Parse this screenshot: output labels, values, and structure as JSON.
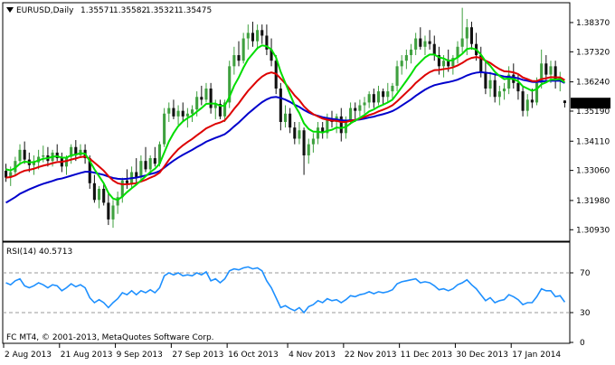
{
  "window": {
    "symbol": "EURUSD,Daily",
    "ohlc": [
      "1.35571",
      "1.35582",
      "1.35321",
      "1.35475"
    ]
  },
  "rsi": {
    "label": "RSI(14) 40.5713",
    "levels": [
      "70",
      "30",
      "0"
    ]
  },
  "copyright": "FC MT4, © 2001-2013, MetaQuotes Software Corp.",
  "price_axis": {
    "ticks": [
      "1.38370",
      "1.37320",
      "1.36240",
      "1.35190",
      "1.34110",
      "1.33060",
      "1.31980",
      "1.30930"
    ],
    "current_price": "1.35475"
  },
  "time_axis": {
    "ticks": [
      "2 Aug 2013",
      "21 Aug 2013",
      "9 Sep 2013",
      "27 Sep 2013",
      "16 Oct 2013",
      "4 Nov 2013",
      "22 Nov 2013",
      "11 Dec 2013",
      "30 Dec 2013",
      "17 Jan 2014"
    ]
  },
  "colors": {
    "bull": "#3fa03f",
    "bear": "#111111",
    "ma_fast": "#00dd00",
    "ma_mid": "#dd0000",
    "ma_slow": "#0000cc",
    "rsi": "#1e90ff",
    "current_tag_bg": "#000000",
    "current_tag_text": "#ffffff"
  },
  "chart_data": {
    "type": "candlestick",
    "title": "EURUSD,Daily",
    "ylim": [
      1.3055,
      1.3905
    ],
    "rsi_ylim": [
      0,
      100
    ],
    "rsi_levels": [
      70,
      30
    ],
    "candles": [
      [
        1.3305,
        1.333,
        1.3265,
        1.328
      ],
      [
        1.328,
        1.332,
        1.325,
        1.33
      ],
      [
        1.33,
        1.3355,
        1.329,
        1.334
      ],
      [
        1.334,
        1.34,
        1.3325,
        1.338
      ],
      [
        1.338,
        1.341,
        1.333,
        1.3345
      ],
      [
        1.3345,
        1.337,
        1.33,
        1.3325
      ],
      [
        1.3325,
        1.336,
        1.329,
        1.3335
      ],
      [
        1.3335,
        1.338,
        1.331,
        1.3355
      ],
      [
        1.3355,
        1.3395,
        1.3335,
        1.336
      ],
      [
        1.336,
        1.339,
        1.332,
        1.334
      ],
      [
        1.334,
        1.338,
        1.332,
        1.337
      ],
      [
        1.337,
        1.34,
        1.334,
        1.335
      ],
      [
        1.335,
        1.337,
        1.33,
        1.332
      ],
      [
        1.332,
        1.336,
        1.329,
        1.3355
      ],
      [
        1.3355,
        1.34,
        1.333,
        1.339
      ],
      [
        1.339,
        1.3415,
        1.334,
        1.336
      ],
      [
        1.336,
        1.34,
        1.335,
        1.338
      ],
      [
        1.338,
        1.34,
        1.333,
        1.335
      ],
      [
        1.335,
        1.336,
        1.324,
        1.326
      ],
      [
        1.326,
        1.329,
        1.319,
        1.32
      ],
      [
        1.32,
        1.325,
        1.317,
        1.324
      ],
      [
        1.324,
        1.326,
        1.318,
        1.319
      ],
      [
        1.319,
        1.323,
        1.311,
        1.313
      ],
      [
        1.313,
        1.32,
        1.31,
        1.318
      ],
      [
        1.318,
        1.323,
        1.315,
        1.321
      ],
      [
        1.321,
        1.328,
        1.319,
        1.327
      ],
      [
        1.327,
        1.331,
        1.324,
        1.326
      ],
      [
        1.326,
        1.332,
        1.324,
        1.33
      ],
      [
        1.33,
        1.335,
        1.326,
        1.328
      ],
      [
        1.328,
        1.336,
        1.327,
        1.334
      ],
      [
        1.334,
        1.339,
        1.33,
        1.331
      ],
      [
        1.331,
        1.336,
        1.329,
        1.335
      ],
      [
        1.335,
        1.339,
        1.332,
        1.333
      ],
      [
        1.333,
        1.341,
        1.332,
        1.34
      ],
      [
        1.34,
        1.353,
        1.339,
        1.351
      ],
      [
        1.351,
        1.355,
        1.348,
        1.353
      ],
      [
        1.353,
        1.356,
        1.349,
        1.35
      ],
      [
        1.35,
        1.354,
        1.347,
        1.352
      ],
      [
        1.352,
        1.355,
        1.348,
        1.35
      ],
      [
        1.35,
        1.353,
        1.346,
        1.351
      ],
      [
        1.351,
        1.354,
        1.348,
        1.3525
      ],
      [
        1.3525,
        1.359,
        1.35,
        1.357
      ],
      [
        1.357,
        1.361,
        1.354,
        1.356
      ],
      [
        1.356,
        1.362,
        1.355,
        1.36
      ],
      [
        1.36,
        1.362,
        1.351,
        1.353
      ],
      [
        1.353,
        1.356,
        1.349,
        1.3545
      ],
      [
        1.3545,
        1.356,
        1.349,
        1.35
      ],
      [
        1.35,
        1.356,
        1.348,
        1.355
      ],
      [
        1.355,
        1.37,
        1.353,
        1.368
      ],
      [
        1.368,
        1.375,
        1.365,
        1.372
      ],
      [
        1.372,
        1.377,
        1.368,
        1.37
      ],
      [
        1.37,
        1.38,
        1.369,
        1.378
      ],
      [
        1.378,
        1.383,
        1.374,
        1.38
      ],
      [
        1.38,
        1.384,
        1.375,
        1.377
      ],
      [
        1.377,
        1.383,
        1.374,
        1.381
      ],
      [
        1.381,
        1.383,
        1.376,
        1.379
      ],
      [
        1.379,
        1.383,
        1.372,
        1.374
      ],
      [
        1.374,
        1.378,
        1.368,
        1.37
      ],
      [
        1.37,
        1.372,
        1.358,
        1.36
      ],
      [
        1.36,
        1.362,
        1.345,
        1.348
      ],
      [
        1.348,
        1.354,
        1.346,
        1.351
      ],
      [
        1.351,
        1.353,
        1.344,
        1.346
      ],
      [
        1.346,
        1.348,
        1.34,
        1.342
      ],
      [
        1.342,
        1.348,
        1.34,
        1.345
      ],
      [
        1.345,
        1.346,
        1.329,
        1.336
      ],
      [
        1.336,
        1.342,
        1.333,
        1.34
      ],
      [
        1.34,
        1.344,
        1.337,
        1.342
      ],
      [
        1.342,
        1.348,
        1.34,
        1.346
      ],
      [
        1.346,
        1.348,
        1.342,
        1.344
      ],
      [
        1.344,
        1.351,
        1.342,
        1.349
      ],
      [
        1.349,
        1.352,
        1.346,
        1.348
      ],
      [
        1.348,
        1.351,
        1.344,
        1.35
      ],
      [
        1.35,
        1.353,
        1.341,
        1.344
      ],
      [
        1.344,
        1.35,
        1.342,
        1.348
      ],
      [
        1.348,
        1.355,
        1.347,
        1.353
      ],
      [
        1.353,
        1.355,
        1.348,
        1.352
      ],
      [
        1.352,
        1.356,
        1.35,
        1.354
      ],
      [
        1.354,
        1.357,
        1.351,
        1.355
      ],
      [
        1.355,
        1.359,
        1.353,
        1.358
      ],
      [
        1.358,
        1.36,
        1.353,
        1.355
      ],
      [
        1.355,
        1.361,
        1.354,
        1.359
      ],
      [
        1.359,
        1.36,
        1.354,
        1.357
      ],
      [
        1.357,
        1.362,
        1.355,
        1.359
      ],
      [
        1.359,
        1.362,
        1.356,
        1.361
      ],
      [
        1.361,
        1.37,
        1.359,
        1.368
      ],
      [
        1.368,
        1.372,
        1.365,
        1.37
      ],
      [
        1.37,
        1.374,
        1.367,
        1.372
      ],
      [
        1.372,
        1.376,
        1.369,
        1.374
      ],
      [
        1.374,
        1.38,
        1.372,
        1.378
      ],
      [
        1.378,
        1.382,
        1.374,
        1.375
      ],
      [
        1.375,
        1.379,
        1.372,
        1.377
      ],
      [
        1.377,
        1.381,
        1.374,
        1.376
      ],
      [
        1.376,
        1.379,
        1.37,
        1.372
      ],
      [
        1.372,
        1.375,
        1.365,
        1.368
      ],
      [
        1.368,
        1.372,
        1.364,
        1.37
      ],
      [
        1.37,
        1.374,
        1.366,
        1.368
      ],
      [
        1.368,
        1.372,
        1.365,
        1.371
      ],
      [
        1.371,
        1.377,
        1.369,
        1.375
      ],
      [
        1.375,
        1.389,
        1.373,
        1.378
      ],
      [
        1.378,
        1.385,
        1.372,
        1.382
      ],
      [
        1.382,
        1.384,
        1.374,
        1.376
      ],
      [
        1.376,
        1.38,
        1.37,
        1.372
      ],
      [
        1.372,
        1.375,
        1.364,
        1.366
      ],
      [
        1.366,
        1.37,
        1.358,
        1.36
      ],
      [
        1.36,
        1.366,
        1.357,
        1.363
      ],
      [
        1.363,
        1.365,
        1.355,
        1.357
      ],
      [
        1.357,
        1.361,
        1.354,
        1.359
      ],
      [
        1.359,
        1.362,
        1.356,
        1.36
      ],
      [
        1.36,
        1.368,
        1.358,
        1.365
      ],
      [
        1.365,
        1.369,
        1.36,
        1.362
      ],
      [
        1.362,
        1.365,
        1.356,
        1.359
      ],
      [
        1.359,
        1.361,
        1.35,
        1.352
      ],
      [
        1.352,
        1.358,
        1.35,
        1.356
      ],
      [
        1.356,
        1.36,
        1.353,
        1.355
      ],
      [
        1.355,
        1.364,
        1.354,
        1.362
      ],
      [
        1.362,
        1.374,
        1.36,
        1.369
      ],
      [
        1.369,
        1.372,
        1.363,
        1.365
      ],
      [
        1.365,
        1.37,
        1.362,
        1.368
      ],
      [
        1.368,
        1.37,
        1.36,
        1.363
      ],
      [
        1.363,
        1.366,
        1.359,
        1.364
      ],
      [
        1.3557,
        1.3558,
        1.3532,
        1.3548
      ]
    ],
    "ma_fast": [
      1.331,
      1.3306,
      1.3315,
      1.333,
      1.3338,
      1.3335,
      1.3336,
      1.3342,
      1.3348,
      1.335,
      1.3355,
      1.3357,
      1.3352,
      1.3352,
      1.336,
      1.3363,
      1.3368,
      1.3366,
      1.334,
      1.331,
      1.3285,
      1.326,
      1.3225,
      1.3205,
      1.32,
      1.3212,
      1.3228,
      1.3242,
      1.3255,
      1.327,
      1.3285,
      1.33,
      1.3312,
      1.333,
      1.337,
      1.341,
      1.344,
      1.3465,
      1.3482,
      1.3494,
      1.3503,
      1.3517,
      1.353,
      1.3545,
      1.3546,
      1.3546,
      1.3538,
      1.3538,
      1.357,
      1.361,
      1.364,
      1.3675,
      1.3705,
      1.3725,
      1.3745,
      1.3755,
      1.3752,
      1.374,
      1.3712,
      1.366,
      1.362,
      1.358,
      1.354,
      1.3512,
      1.3475,
      1.3455,
      1.3445,
      1.3445,
      1.3442,
      1.3448,
      1.3452,
      1.346,
      1.3458,
      1.3462,
      1.3475,
      1.3485,
      1.3495,
      1.3505,
      1.3518,
      1.3525,
      1.3535,
      1.3542,
      1.355,
      1.356,
      1.3582,
      1.3605,
      1.3628,
      1.3652,
      1.3678,
      1.3695,
      1.3712,
      1.3722,
      1.3722,
      1.3712,
      1.3708,
      1.37,
      1.3702,
      1.3712,
      1.3725,
      1.3742,
      1.3745,
      1.374,
      1.3722,
      1.3698,
      1.3682,
      1.366,
      1.3645,
      1.3634,
      1.3636,
      1.3634,
      1.3626,
      1.3608,
      1.36,
      1.3592,
      1.3598,
      1.3615,
      1.3622,
      1.3632,
      1.3632,
      1.3634,
      1.3622
    ],
    "ma_mid": [
      1.328,
      1.3282,
      1.3288,
      1.3298,
      1.3305,
      1.3308,
      1.3312,
      1.3318,
      1.3323,
      1.3327,
      1.3332,
      1.3336,
      1.3337,
      1.334,
      1.3345,
      1.3349,
      1.3354,
      1.3356,
      1.3348,
      1.3334,
      1.332,
      1.3305,
      1.3286,
      1.327,
      1.326,
      1.3256,
      1.3256,
      1.3258,
      1.326,
      1.3266,
      1.3272,
      1.328,
      1.3287,
      1.3298,
      1.332,
      1.3344,
      1.3364,
      1.3382,
      1.3396,
      1.3408,
      1.3419,
      1.3432,
      1.3444,
      1.3457,
      1.3465,
      1.3473,
      1.3478,
      1.3486,
      1.3505,
      1.3527,
      1.3547,
      1.357,
      1.3592,
      1.361,
      1.3628,
      1.3643,
      1.3653,
      1.3658,
      1.3653,
      1.3636,
      1.3618,
      1.3597,
      1.3575,
      1.3558,
      1.3536,
      1.352,
      1.3508,
      1.35,
      1.3492,
      1.3488,
      1.3485,
      1.3484,
      1.348,
      1.348,
      1.3484,
      1.3487,
      1.3492,
      1.3498,
      1.3505,
      1.351,
      1.3518,
      1.3524,
      1.3531,
      1.354,
      1.3554,
      1.357,
      1.3586,
      1.3602,
      1.362,
      1.3634,
      1.3648,
      1.3659,
      1.3666,
      1.3667,
      1.367,
      1.3672,
      1.3676,
      1.3683,
      1.3692,
      1.3703,
      1.371,
      1.3713,
      1.371,
      1.37,
      1.3692,
      1.368,
      1.367,
      1.3662,
      1.3661,
      1.3658,
      1.3652,
      1.364,
      1.3634,
      1.3627,
      1.3627,
      1.3634,
      1.3637,
      1.3641,
      1.364,
      1.364,
      1.363
    ],
    "ma_slow": [
      1.319,
      1.32,
      1.321,
      1.3222,
      1.323,
      1.3238,
      1.3245,
      1.3252,
      1.3258,
      1.3263,
      1.3268,
      1.3274,
      1.3277,
      1.3282,
      1.3287,
      1.3292,
      1.3297,
      1.3301,
      1.3301,
      1.3298,
      1.3294,
      1.329,
      1.3284,
      1.3279,
      1.3276,
      1.3275,
      1.3276,
      1.3278,
      1.328,
      1.3284,
      1.3288,
      1.3293,
      1.3297,
      1.3304,
      1.3316,
      1.3329,
      1.3341,
      1.3352,
      1.3362,
      1.3371,
      1.338,
      1.339,
      1.3399,
      1.3409,
      1.3416,
      1.3423,
      1.3429,
      1.3436,
      1.3449,
      1.3464,
      1.3478,
      1.3494,
      1.351,
      1.3524,
      1.3538,
      1.3551,
      1.3561,
      1.3568,
      1.357,
      1.3566,
      1.356,
      1.3552,
      1.3542,
      1.3534,
      1.3523,
      1.3514,
      1.3507,
      1.3502,
      1.3497,
      1.3494,
      1.3491,
      1.3489,
      1.3486,
      1.3485,
      1.3486,
      1.3487,
      1.3489,
      1.3492,
      1.3496,
      1.3499,
      1.3504,
      1.3508,
      1.3513,
      1.3519,
      1.3528,
      1.3539,
      1.355,
      1.3561,
      1.3574,
      1.3585,
      1.3596,
      1.3605,
      1.3612,
      1.3616,
      1.362,
      1.3623,
      1.3627,
      1.3632,
      1.3639,
      1.3647,
      1.3653,
      1.3657,
      1.3659,
      1.3657,
      1.3655,
      1.3651,
      1.3647,
      1.3643,
      1.3642,
      1.364,
      1.3637,
      1.3631,
      1.3628,
      1.3624,
      1.3623,
      1.3626,
      1.3627,
      1.3628,
      1.3628,
      1.3628,
      1.362
    ],
    "rsi_values": [
      60,
      58,
      62,
      64,
      57,
      55,
      57,
      60,
      58,
      55,
      58,
      57,
      52,
      55,
      59,
      56,
      58,
      55,
      45,
      40,
      43,
      40,
      35,
      40,
      44,
      50,
      48,
      52,
      48,
      52,
      50,
      53,
      50,
      55,
      67,
      70,
      68,
      70,
      67,
      68,
      67,
      70,
      68,
      71,
      62,
      64,
      60,
      64,
      72,
      74,
      73,
      75,
      76,
      74,
      75,
      72,
      62,
      55,
      45,
      35,
      37,
      34,
      32,
      35,
      30,
      36,
      38,
      42,
      40,
      44,
      42,
      43,
      40,
      43,
      47,
      46,
      48,
      49,
      51,
      49,
      51,
      50,
      51,
      53,
      59,
      61,
      62,
      63,
      64,
      60,
      61,
      60,
      57,
      53,
      54,
      52,
      54,
      58,
      60,
      63,
      58,
      54,
      48,
      42,
      45,
      40,
      42,
      43,
      48,
      46,
      43,
      38,
      40,
      40,
      46,
      54,
      52,
      52,
      46,
      47,
      40.5713
    ]
  }
}
